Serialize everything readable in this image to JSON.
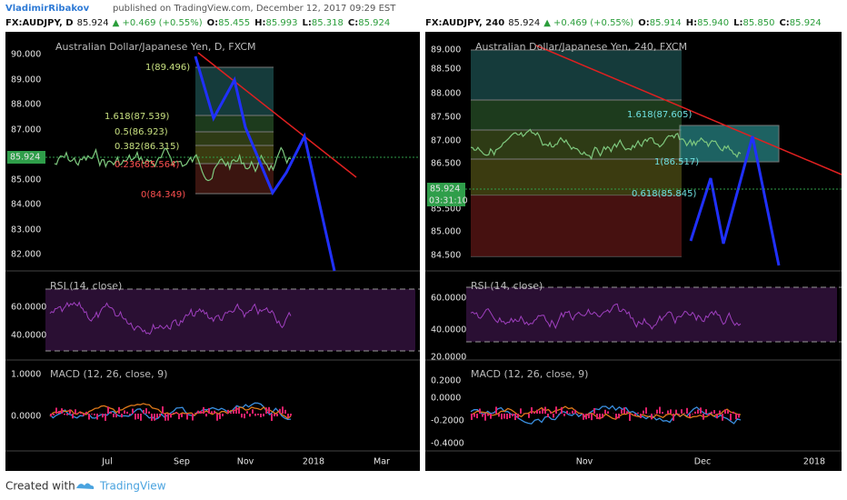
{
  "header": {
    "author": "VladimirRibakov",
    "published": "published on TradingView.com, December 12, 2017 09:29 EST"
  },
  "panels": [
    {
      "symbol": "FX:AUDJPY, D",
      "price": "85.924",
      "change": "▲ +0.469 (+0.55%)",
      "open_label": "O:",
      "open": "85.455",
      "high_label": "H:",
      "high": "85.993",
      "low_label": "L:",
      "low": "85.318",
      "close_label": "C:",
      "close": "85.924",
      "title": "Australian Dollar/Japanese Yen, D, FXCM",
      "price_ticks": [
        "90.000",
        "89.000",
        "88.000",
        "87.000",
        "85.000",
        "84.000",
        "83.000",
        "82.000"
      ],
      "last_price": "85.924",
      "fib_labels": [
        "1(89.496)",
        "1.618(87.539)",
        "0.5(86.923)",
        "0.382(86.315)",
        "0.236(85.564)",
        "0(84.349)"
      ],
      "rsi_label": "RSI (14, close)",
      "rsi_ticks": [
        "60.0000",
        "40.0000"
      ],
      "macd_label": "MACD (12, 26, close, 9)",
      "macd_ticks": [
        "1.0000",
        "0.0000"
      ],
      "x_labels": [
        "Jul",
        "Sep",
        "Nov",
        "2018",
        "Mar"
      ]
    },
    {
      "symbol": "FX:AUDJPY, 240",
      "price": "85.924",
      "change": "▲ +0.469 (+0.55%)",
      "open_label": "O:",
      "open": "85.914",
      "high_label": "H:",
      "high": "85.940",
      "low_label": "L:",
      "low": "85.850",
      "close_label": "C:",
      "close": "85.924",
      "title": "Australian Dollar/Japanese Yen, 240, FXCM",
      "price_ticks": [
        "89.000",
        "88.500",
        "88.000",
        "87.500",
        "87.000",
        "86.500",
        "85.500",
        "85.000",
        "84.500"
      ],
      "last_price": "85.924",
      "countdown": "03:31:10",
      "fib_labels": [
        "1.618(87.605)",
        "1(86.517)",
        "0.618(85.845)"
      ],
      "rsi_label": "RSI (14, close)",
      "rsi_ticks": [
        "60.0000",
        "40.0000",
        "20.0000"
      ],
      "macd_label": "MACD (12, 26, close, 9)",
      "macd_ticks": [
        "0.2000",
        "0.0000",
        "-0.2000",
        "-0.4000"
      ],
      "x_labels": [
        "Nov",
        "Dec",
        "2018"
      ]
    }
  ],
  "footer": {
    "created": "Created with",
    "brand": "TradingView"
  }
}
